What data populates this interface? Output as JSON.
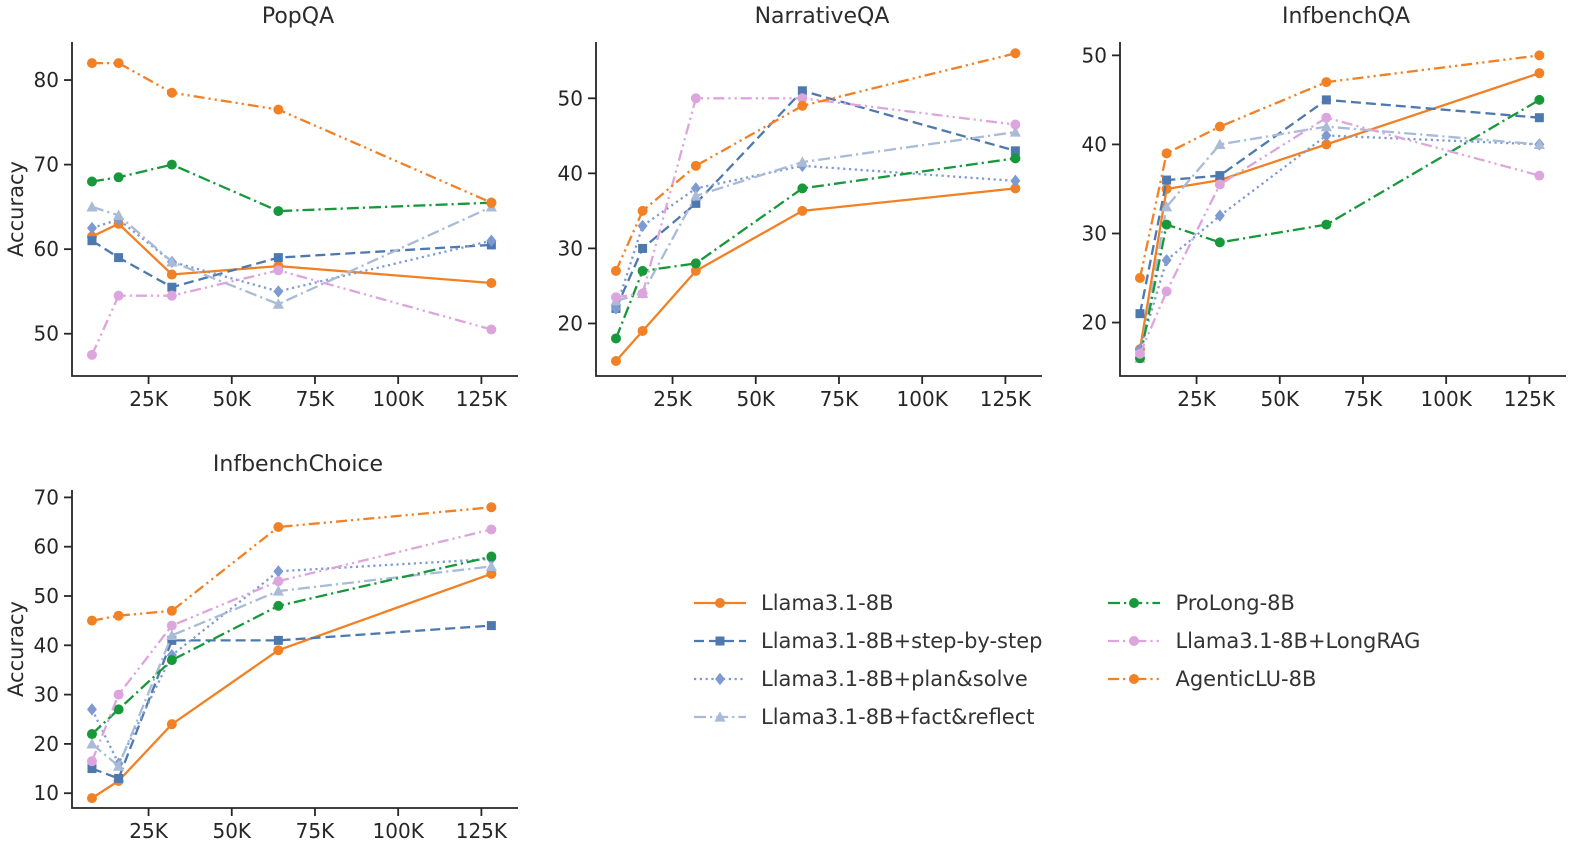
{
  "figure": {
    "background": "#ffffff",
    "axis_color": "#262626",
    "text_color": "#262626"
  },
  "series_styles": [
    {
      "id": "llama",
      "label": "Llama3.1-8B",
      "color": "#f28024",
      "dash": "solid",
      "marker": "circle"
    },
    {
      "id": "step",
      "label": "Llama3.1-8B+step-by-step",
      "color": "#4e79af",
      "dash": "dashed",
      "marker": "square"
    },
    {
      "id": "plan",
      "label": "Llama3.1-8B+plan&solve",
      "color": "#7d9bd2",
      "dash": "dotted",
      "marker": "diamond"
    },
    {
      "id": "fact",
      "label": "Llama3.1-8B+fact&reflect",
      "color": "#a9bbd6",
      "dash": "dashdot",
      "marker": "triangle"
    },
    {
      "id": "prolong",
      "label": "ProLong-8B",
      "color": "#17993b",
      "dash": "dashdot",
      "marker": "circle"
    },
    {
      "id": "longrag",
      "label": "Llama3.1-8B+LongRAG",
      "color": "#dda5dd",
      "dash": "dashdotdot",
      "marker": "circle"
    },
    {
      "id": "agenticlu",
      "label": "AgenticLU-8B",
      "color": "#f28024",
      "dash": "dashdotdot",
      "marker": "circle"
    }
  ],
  "chart_data": [
    {
      "type": "line",
      "title": "PopQA",
      "xlabel": "",
      "ylabel": "Accuracy",
      "x": [
        8,
        16,
        32,
        64,
        128
      ],
      "xlim": [
        2,
        136
      ],
      "xticks": [
        25,
        50,
        75,
        100,
        125
      ],
      "xtick_labels": [
        "25K",
        "50K",
        "75K",
        "100K",
        "125K"
      ],
      "ylim": [
        45,
        84.5
      ],
      "yticks": [
        50,
        60,
        70,
        80
      ],
      "series": [
        {
          "id": "llama",
          "name": "Llama3.1-8B",
          "values": [
            61.5,
            63,
            57,
            58,
            56
          ]
        },
        {
          "id": "step",
          "name": "Llama3.1-8B+step-by-step",
          "values": [
            61,
            59,
            55.5,
            59,
            60.5
          ]
        },
        {
          "id": "plan",
          "name": "Llama3.1-8B+plan&solve",
          "values": [
            62.5,
            63.5,
            58.5,
            55,
            61
          ]
        },
        {
          "id": "fact",
          "name": "Llama3.1-8B+fact&reflect",
          "values": [
            65,
            64,
            58.5,
            53.5,
            65
          ]
        },
        {
          "id": "prolong",
          "name": "ProLong-8B",
          "values": [
            68,
            68.5,
            70,
            64.5,
            65.5
          ]
        },
        {
          "id": "longrag",
          "name": "Llama3.1-8B+LongRAG",
          "values": [
            47.5,
            54.5,
            54.5,
            57.5,
            50.5
          ]
        },
        {
          "id": "agenticlu",
          "name": "AgenticLU-8B",
          "values": [
            82,
            82,
            78.5,
            76.5,
            65.5
          ]
        }
      ]
    },
    {
      "type": "line",
      "title": "NarrativeQA",
      "xlabel": "",
      "ylabel": "",
      "x": [
        8,
        16,
        32,
        64,
        128
      ],
      "xlim": [
        2,
        136
      ],
      "xticks": [
        25,
        50,
        75,
        100,
        125
      ],
      "xtick_labels": [
        "25K",
        "50K",
        "75K",
        "100K",
        "125K"
      ],
      "ylim": [
        13,
        57.5
      ],
      "yticks": [
        20,
        30,
        40,
        50
      ],
      "series": [
        {
          "id": "llama",
          "name": "Llama3.1-8B",
          "values": [
            15,
            19,
            27,
            35,
            38
          ]
        },
        {
          "id": "step",
          "name": "Llama3.1-8B+step-by-step",
          "values": [
            22,
            30,
            36,
            51,
            43
          ]
        },
        {
          "id": "plan",
          "name": "Llama3.1-8B+plan&solve",
          "values": [
            22,
            33,
            38,
            41,
            39
          ]
        },
        {
          "id": "fact",
          "name": "Llama3.1-8B+fact&reflect",
          "values": [
            23,
            24,
            37,
            41.5,
            45.5
          ]
        },
        {
          "id": "prolong",
          "name": "ProLong-8B",
          "values": [
            18,
            27,
            28,
            38,
            42
          ]
        },
        {
          "id": "longrag",
          "name": "Llama3.1-8B+LongRAG",
          "values": [
            23.5,
            24,
            50,
            50,
            46.5
          ]
        },
        {
          "id": "agenticlu",
          "name": "AgenticLU-8B",
          "values": [
            27,
            35,
            41,
            49,
            56
          ]
        }
      ]
    },
    {
      "type": "line",
      "title": "InfbenchQA",
      "xlabel": "",
      "ylabel": "",
      "x": [
        8,
        16,
        32,
        64,
        128
      ],
      "xlim": [
        2,
        136
      ],
      "xticks": [
        25,
        50,
        75,
        100,
        125
      ],
      "xtick_labels": [
        "25K",
        "50K",
        "75K",
        "100K",
        "125K"
      ],
      "ylim": [
        14,
        51.5
      ],
      "yticks": [
        20,
        30,
        40,
        50
      ],
      "series": [
        {
          "id": "llama",
          "name": "Llama3.1-8B",
          "values": [
            17,
            35,
            36,
            40,
            48
          ]
        },
        {
          "id": "step",
          "name": "Llama3.1-8B+step-by-step",
          "values": [
            21,
            36,
            36.5,
            45,
            43
          ]
        },
        {
          "id": "plan",
          "name": "Llama3.1-8B+plan&solve",
          "values": [
            17,
            27,
            32,
            41,
            40
          ]
        },
        {
          "id": "fact",
          "name": "Llama3.1-8B+fact&reflect",
          "values": [
            16,
            33,
            40,
            42,
            40
          ]
        },
        {
          "id": "prolong",
          "name": "ProLong-8B",
          "values": [
            16,
            31,
            29,
            31,
            45
          ]
        },
        {
          "id": "longrag",
          "name": "Llama3.1-8B+LongRAG",
          "values": [
            16.5,
            23.5,
            35.5,
            43,
            36.5
          ]
        },
        {
          "id": "agenticlu",
          "name": "AgenticLU-8B",
          "values": [
            25,
            39,
            42,
            47,
            50
          ]
        }
      ]
    },
    {
      "type": "line",
      "title": "InfbenchChoice",
      "xlabel": "",
      "ylabel": "Accuracy",
      "x": [
        8,
        16,
        32,
        64,
        128
      ],
      "xlim": [
        2,
        136
      ],
      "xticks": [
        25,
        50,
        75,
        100,
        125
      ],
      "xtick_labels": [
        "25K",
        "50K",
        "75K",
        "100K",
        "125K"
      ],
      "ylim": [
        7,
        71.5
      ],
      "yticks": [
        10,
        20,
        30,
        40,
        50,
        60,
        70
      ],
      "series": [
        {
          "id": "llama",
          "name": "Llama3.1-8B",
          "values": [
            9,
            12.5,
            24,
            39,
            54.5
          ]
        },
        {
          "id": "step",
          "name": "Llama3.1-8B+step-by-step",
          "values": [
            15,
            13,
            41,
            41,
            44
          ]
        },
        {
          "id": "plan",
          "name": "Llama3.1-8B+plan&solve",
          "values": [
            27,
            16,
            38,
            55,
            57.5
          ]
        },
        {
          "id": "fact",
          "name": "Llama3.1-8B+fact&reflect",
          "values": [
            20,
            15.5,
            42,
            51,
            56
          ]
        },
        {
          "id": "prolong",
          "name": "ProLong-8B",
          "values": [
            22,
            27,
            37,
            48,
            58
          ]
        },
        {
          "id": "longrag",
          "name": "Llama3.1-8B+LongRAG",
          "values": [
            16.5,
            30,
            44,
            53,
            63.5
          ]
        },
        {
          "id": "agenticlu",
          "name": "AgenticLU-8B",
          "values": [
            45,
            46,
            47,
            64,
            68
          ]
        }
      ]
    }
  ]
}
